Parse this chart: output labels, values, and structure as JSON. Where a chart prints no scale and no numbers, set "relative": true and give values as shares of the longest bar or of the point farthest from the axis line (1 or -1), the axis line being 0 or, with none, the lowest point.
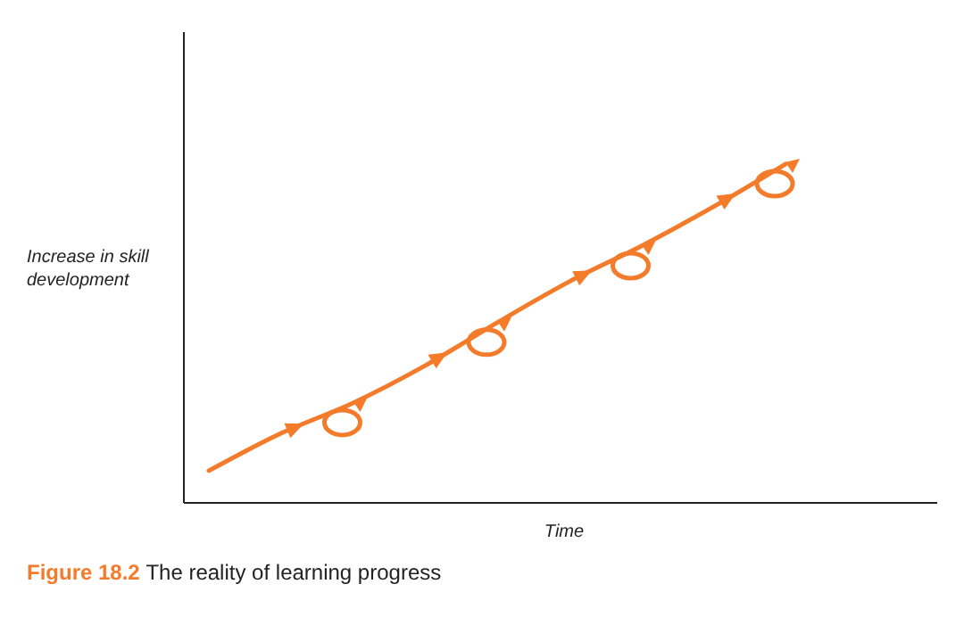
{
  "chart_data": {
    "type": "line",
    "relative": true,
    "title": "Figure 18.2 The reality of learning progress",
    "xlabel": "Time",
    "ylabel": "Increase in skill development",
    "categories": [
      null,
      null,
      null,
      null,
      null,
      null,
      null,
      null,
      null
    ],
    "series": [
      {
        "color": "#f47b2a",
        "values": [
          0.095,
          0.205,
          0.295,
          0.405,
          0.532,
          0.653,
          0.758,
          0.874,
          1
        ]
      }
    ],
    "marker": "none",
    "line_style": "solid"
  }
}
